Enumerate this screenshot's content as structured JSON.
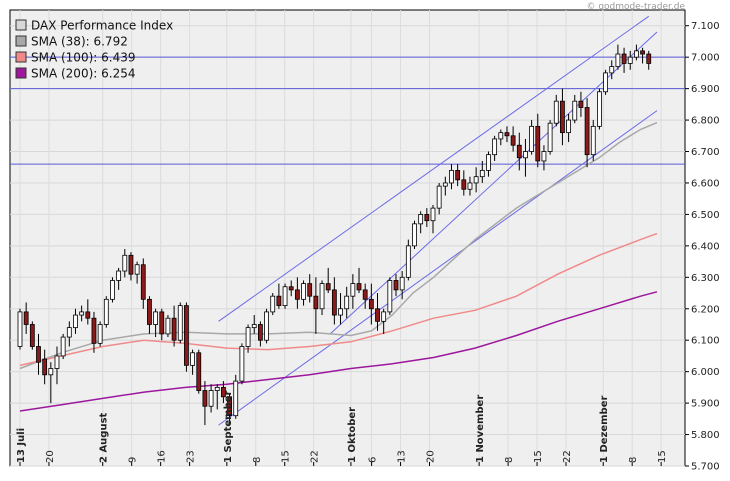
{
  "watermark": "© godmode-trader.de",
  "chart_data": {
    "type": "line",
    "title": "",
    "xlabel": "",
    "ylabel": "",
    "ylim": [
      5700,
      7150
    ],
    "y_ticks": [
      "5.700",
      "5.800",
      "5.900",
      "6.000",
      "6.100",
      "6.200",
      "6.300",
      "6.400",
      "6.500",
      "6.600",
      "6.700",
      "6.800",
      "6.900",
      "7.000",
      "7.100"
    ],
    "y_tick_values": [
      5700,
      5800,
      5900,
      6000,
      6100,
      6200,
      6300,
      6400,
      6500,
      6600,
      6700,
      6800,
      6900,
      7000,
      7100
    ],
    "x_range_days": [
      0,
      154
    ],
    "x_ticks": [
      {
        "label": "13 Juli",
        "day": 0,
        "month": true
      },
      {
        "label": "20",
        "day": 7
      },
      {
        "label": "2 August",
        "day": 20,
        "month": true
      },
      {
        "label": "9",
        "day": 27
      },
      {
        "label": "16",
        "day": 34
      },
      {
        "label": "23",
        "day": 41
      },
      {
        "label": "1 September",
        "day": 50,
        "month": true
      },
      {
        "label": "8",
        "day": 57
      },
      {
        "label": "15",
        "day": 64
      },
      {
        "label": "22",
        "day": 71
      },
      {
        "label": "1 Oktober",
        "day": 80,
        "month": true
      },
      {
        "label": "6",
        "day": 85
      },
      {
        "label": "13",
        "day": 92
      },
      {
        "label": "20",
        "day": 99
      },
      {
        "label": "1 November",
        "day": 111,
        "month": true
      },
      {
        "label": "8",
        "day": 118
      },
      {
        "label": "15",
        "day": 125
      },
      {
        "label": "22",
        "day": 132
      },
      {
        "label": "1 Dezember",
        "day": 141,
        "month": true
      },
      {
        "label": "8",
        "day": 148
      },
      {
        "label": "15",
        "day": 155
      }
    ],
    "legend": [
      {
        "label": "DAX Performance Index",
        "color": "#d8d8d8"
      },
      {
        "label": "SMA (38): 6.792",
        "color": "#a8a8a8"
      },
      {
        "label": "SMA (100): 6.439",
        "color": "#f08a8a"
      },
      {
        "label": "SMA (200): 6.254",
        "color": "#9c179c"
      }
    ],
    "horizontal_lines": [
      7000,
      6900,
      6660
    ],
    "trend_channels": [
      {
        "x1": 48,
        "y1": 6160,
        "x2": 152,
        "y2": 7130
      },
      {
        "x1": 48,
        "y1": 5830,
        "x2": 154,
        "y2": 6830
      },
      {
        "x1": 75,
        "y1": 6120,
        "x2": 154,
        "y2": 7080
      }
    ],
    "series": [
      {
        "name": "SMA (38)",
        "color": "#a8a8a8",
        "points": [
          [
            0,
            6010
          ],
          [
            10,
            6060
          ],
          [
            20,
            6100
          ],
          [
            30,
            6120
          ],
          [
            40,
            6125
          ],
          [
            50,
            6120
          ],
          [
            60,
            6120
          ],
          [
            70,
            6125
          ],
          [
            80,
            6115
          ],
          [
            85,
            6130
          ],
          [
            90,
            6180
          ],
          [
            95,
            6250
          ],
          [
            100,
            6300
          ],
          [
            105,
            6360
          ],
          [
            110,
            6420
          ],
          [
            115,
            6470
          ],
          [
            120,
            6520
          ],
          [
            125,
            6560
          ],
          [
            130,
            6600
          ],
          [
            135,
            6640
          ],
          [
            140,
            6680
          ],
          [
            145,
            6730
          ],
          [
            150,
            6770
          ],
          [
            154,
            6792
          ]
        ]
      },
      {
        "name": "SMA (100)",
        "color": "#f08a8a",
        "points": [
          [
            0,
            6020
          ],
          [
            10,
            6050
          ],
          [
            20,
            6080
          ],
          [
            30,
            6100
          ],
          [
            40,
            6090
          ],
          [
            50,
            6075
          ],
          [
            60,
            6070
          ],
          [
            70,
            6080
          ],
          [
            80,
            6095
          ],
          [
            90,
            6130
          ],
          [
            100,
            6170
          ],
          [
            110,
            6195
          ],
          [
            120,
            6240
          ],
          [
            130,
            6310
          ],
          [
            140,
            6370
          ],
          [
            150,
            6420
          ],
          [
            154,
            6439
          ]
        ]
      },
      {
        "name": "SMA (200)",
        "color": "#9c179c",
        "points": [
          [
            0,
            5875
          ],
          [
            10,
            5895
          ],
          [
            20,
            5915
          ],
          [
            30,
            5935
          ],
          [
            40,
            5950
          ],
          [
            50,
            5960
          ],
          [
            60,
            5975
          ],
          [
            70,
            5990
          ],
          [
            80,
            6010
          ],
          [
            90,
            6025
          ],
          [
            100,
            6045
          ],
          [
            110,
            6075
          ],
          [
            120,
            6115
          ],
          [
            130,
            6160
          ],
          [
            140,
            6200
          ],
          [
            150,
            6240
          ],
          [
            154,
            6254
          ]
        ]
      }
    ],
    "candles": [
      [
        0,
        6080,
        6200,
        6070,
        6190
      ],
      [
        1,
        6190,
        6220,
        6120,
        6150
      ],
      [
        2,
        6150,
        6160,
        6070,
        6080
      ],
      [
        3,
        6080,
        6120,
        5990,
        6030
      ],
      [
        4,
        6040,
        6070,
        5960,
        5990
      ],
      [
        6,
        5990,
        6030,
        5900,
        6010
      ],
      [
        7,
        6010,
        6080,
        5960,
        6050
      ],
      [
        8,
        6050,
        6120,
        6040,
        6110
      ],
      [
        9,
        6110,
        6160,
        6080,
        6140
      ],
      [
        10,
        6140,
        6200,
        6120,
        6180
      ],
      [
        11,
        6180,
        6210,
        6160,
        6190
      ],
      [
        12,
        6190,
        6230,
        6150,
        6170
      ],
      [
        13,
        6170,
        6190,
        6060,
        6090
      ],
      [
        14,
        6090,
        6160,
        6080,
        6150
      ],
      [
        15,
        6150,
        6240,
        6140,
        6230
      ],
      [
        16,
        6230,
        6300,
        6220,
        6290
      ],
      [
        17,
        6290,
        6330,
        6260,
        6320
      ],
      [
        18,
        6320,
        6390,
        6300,
        6370
      ],
      [
        19,
        6370,
        6380,
        6290,
        6310
      ],
      [
        20,
        6310,
        6350,
        6280,
        6340
      ],
      [
        21,
        6340,
        6360,
        6200,
        6230
      ],
      [
        22,
        6230,
        6240,
        6120,
        6150
      ],
      [
        23,
        6150,
        6200,
        6110,
        6190
      ],
      [
        24,
        6190,
        6200,
        6100,
        6120
      ],
      [
        25,
        6120,
        6180,
        6110,
        6170
      ],
      [
        26,
        6170,
        6210,
        6080,
        6100
      ],
      [
        27,
        6100,
        6220,
        6090,
        6210
      ],
      [
        28,
        6210,
        6220,
        6000,
        6020
      ],
      [
        29,
        6020,
        6070,
        5990,
        6060
      ],
      [
        30,
        6060,
        6070,
        5930,
        5940
      ],
      [
        31,
        5940,
        5970,
        5830,
        5890
      ],
      [
        32,
        5890,
        5960,
        5870,
        5940
      ],
      [
        33,
        5940,
        5960,
        5880,
        5950
      ],
      [
        34,
        5950,
        5970,
        5900,
        5920
      ],
      [
        35,
        5920,
        5930,
        5830,
        5860
      ],
      [
        36,
        5860,
        5990,
        5850,
        5970
      ],
      [
        37,
        5970,
        6090,
        5960,
        6080
      ],
      [
        38,
        6080,
        6150,
        6060,
        6140
      ],
      [
        39,
        6140,
        6180,
        6120,
        6150
      ],
      [
        40,
        6150,
        6160,
        6080,
        6100
      ],
      [
        41,
        6100,
        6200,
        6090,
        6190
      ],
      [
        42,
        6190,
        6250,
        6180,
        6240
      ],
      [
        43,
        6240,
        6280,
        6200,
        6210
      ],
      [
        44,
        6210,
        6280,
        6200,
        6270
      ],
      [
        45,
        6270,
        6290,
        6240,
        6260
      ],
      [
        46,
        6260,
        6300,
        6200,
        6230
      ],
      [
        47,
        6230,
        6290,
        6210,
        6280
      ],
      [
        48,
        6280,
        6310,
        6220,
        6240
      ],
      [
        49,
        6240,
        6300,
        6120,
        6200
      ],
      [
        50,
        6200,
        6290,
        6180,
        6280
      ],
      [
        51,
        6280,
        6330,
        6250,
        6260
      ],
      [
        52,
        6260,
        6300,
        6150,
        6180
      ],
      [
        53,
        6180,
        6250,
        6150,
        6200
      ],
      [
        54,
        6200,
        6270,
        6170,
        6240
      ],
      [
        55,
        6240,
        6310,
        6200,
        6280
      ],
      [
        56,
        6280,
        6330,
        6250,
        6260
      ],
      [
        57,
        6260,
        6280,
        6200,
        6230
      ],
      [
        58,
        6230,
        6280,
        6150,
        6200
      ],
      [
        59,
        6200,
        6250,
        6130,
        6160
      ],
      [
        60,
        6160,
        6200,
        6120,
        6190
      ],
      [
        61,
        6190,
        6300,
        6180,
        6290
      ],
      [
        62,
        6290,
        6310,
        6240,
        6260
      ],
      [
        63,
        6260,
        6320,
        6230,
        6300
      ],
      [
        64,
        6300,
        6420,
        6290,
        6400
      ],
      [
        65,
        6400,
        6480,
        6390,
        6470
      ],
      [
        66,
        6470,
        6510,
        6440,
        6500
      ],
      [
        67,
        6500,
        6520,
        6460,
        6480
      ],
      [
        68,
        6480,
        6530,
        6440,
        6520
      ],
      [
        69,
        6520,
        6600,
        6500,
        6590
      ],
      [
        70,
        6590,
        6620,
        6560,
        6600
      ],
      [
        71,
        6600,
        6660,
        6580,
        6640
      ],
      [
        72,
        6640,
        6660,
        6590,
        6610
      ],
      [
        73,
        6610,
        6640,
        6560,
        6580
      ],
      [
        74,
        6580,
        6620,
        6560,
        6600
      ],
      [
        75,
        6600,
        6650,
        6570,
        6620
      ],
      [
        76,
        6620,
        6670,
        6600,
        6640
      ],
      [
        77,
        6640,
        6700,
        6620,
        6690
      ],
      [
        78,
        6690,
        6750,
        6670,
        6740
      ],
      [
        79,
        6740,
        6770,
        6720,
        6760
      ],
      [
        80,
        6760,
        6780,
        6730,
        6750
      ],
      [
        81,
        6750,
        6780,
        6700,
        6720
      ],
      [
        82,
        6720,
        6760,
        6640,
        6680
      ],
      [
        83,
        6680,
        6740,
        6620,
        6700
      ],
      [
        84,
        6700,
        6800,
        6690,
        6780
      ],
      [
        85,
        6780,
        6820,
        6650,
        6670
      ],
      [
        86,
        6670,
        6720,
        6640,
        6700
      ],
      [
        87,
        6700,
        6800,
        6690,
        6790
      ],
      [
        88,
        6790,
        6880,
        6780,
        6860
      ],
      [
        89,
        6860,
        6900,
        6720,
        6760
      ],
      [
        90,
        6760,
        6820,
        6730,
        6800
      ],
      [
        91,
        6800,
        6880,
        6790,
        6860
      ],
      [
        92,
        6860,
        6890,
        6810,
        6840
      ],
      [
        93,
        6840,
        6870,
        6650,
        6690
      ],
      [
        94,
        6690,
        6800,
        6670,
        6780
      ],
      [
        95,
        6780,
        6900,
        6770,
        6890
      ],
      [
        96,
        6890,
        6960,
        6880,
        6950
      ],
      [
        97,
        6950,
        6990,
        6930,
        6970
      ],
      [
        98,
        6970,
        7040,
        6960,
        7010
      ],
      [
        99,
        7010,
        7030,
        6950,
        6980
      ],
      [
        100,
        6980,
        7020,
        6960,
        7000
      ],
      [
        101,
        7000,
        7040,
        6990,
        7020
      ],
      [
        102,
        7020,
        7030,
        6980,
        7010
      ],
      [
        103,
        7010,
        7020,
        6960,
        6980
      ]
    ]
  }
}
